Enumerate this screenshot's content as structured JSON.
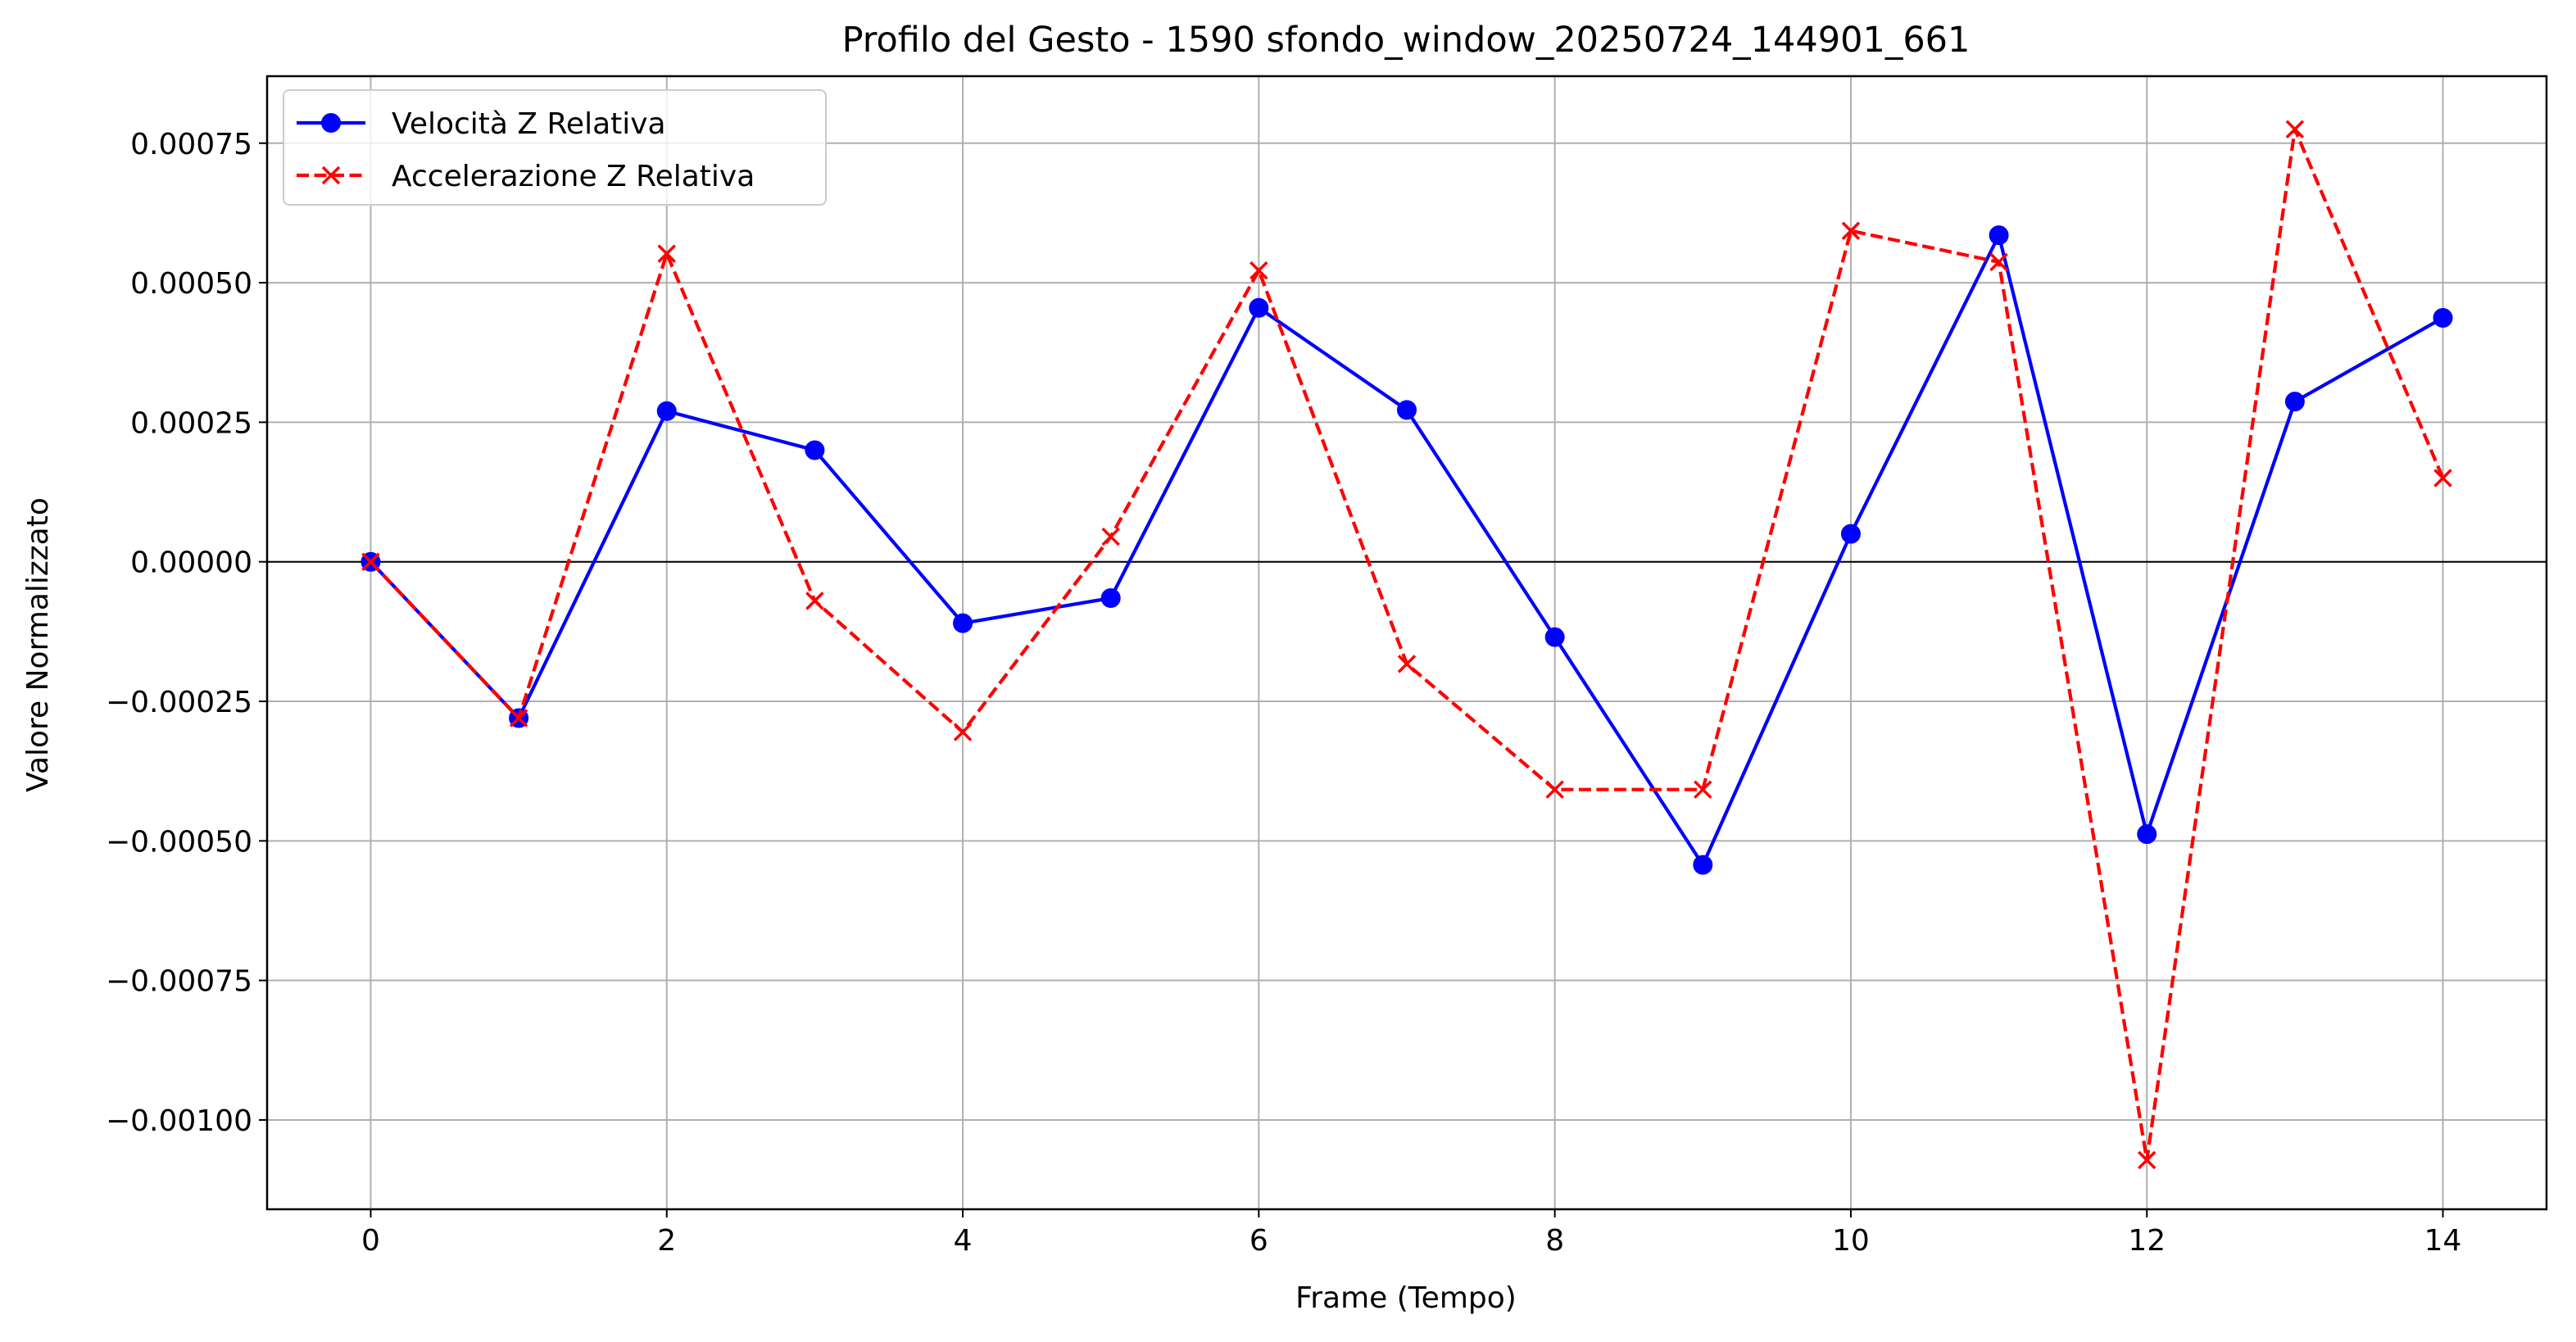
{
  "chart_data": {
    "type": "line",
    "title": "Profilo del Gesto - 1590 sfondo_window_20250724_144901_661",
    "xlabel": "Frame (Tempo)",
    "ylabel": "Valore Normalizzato",
    "x": [
      0,
      1,
      2,
      3,
      4,
      5,
      6,
      7,
      8,
      9,
      10,
      11,
      12,
      13,
      14
    ],
    "xlim": [
      -0.7,
      14.7
    ],
    "ylim": [
      -0.00116,
      0.00087
    ],
    "xticks": [
      0,
      2,
      4,
      6,
      8,
      10,
      12,
      14
    ],
    "xtick_labels": [
      "0",
      "2",
      "4",
      "6",
      "8",
      "10",
      "12",
      "14"
    ],
    "yticks": [
      0.00075,
      0.0005,
      0.00025,
      0,
      -0.00025,
      -0.0005,
      -0.00075,
      -0.001
    ],
    "ytick_labels": [
      "0.00075",
      "0.00050",
      "0.00025",
      "0.00000",
      "−0.00025",
      "−0.00050",
      "−0.00075",
      "−0.00100"
    ],
    "grid": true,
    "zero_line": true,
    "legend_position": "upper-left",
    "series": [
      {
        "name": "Velocità Z Relativa",
        "color": "#0000ff",
        "line_style": "solid",
        "marker": "circle",
        "values": [
          0.0,
          -0.00028,
          0.00027,
          0.0002,
          -0.00011,
          -6.5e-05,
          0.000455,
          0.000272,
          -0.000135,
          -0.000543,
          5e-05,
          0.000585,
          -0.000488,
          0.000287,
          0.000437
        ]
      },
      {
        "name": "Accelerazione Z Relativa",
        "color": "#ff0000",
        "line_style": "dashed",
        "marker": "x",
        "values": [
          0.0,
          -0.00028,
          0.000552,
          -7e-05,
          -0.000305,
          4.5e-05,
          0.000522,
          -0.000183,
          -0.000408,
          -0.000408,
          0.000593,
          0.000537,
          -0.001072,
          0.000775,
          0.00015
        ]
      }
    ]
  }
}
